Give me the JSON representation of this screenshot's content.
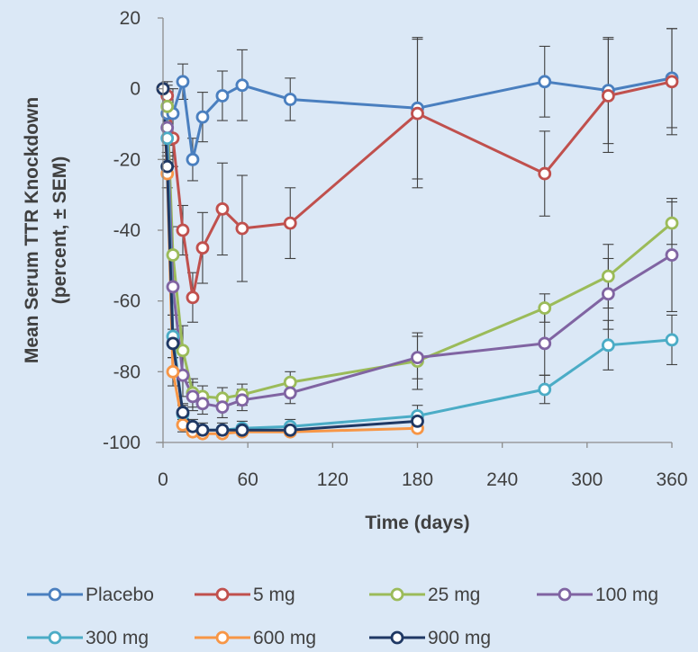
{
  "chart_data": {
    "type": "line",
    "xlabel": "Time (days)",
    "ylabel_lines": [
      "Mean Serum TTR Knockdown",
      "(percent, ± SEM)"
    ],
    "xlim": [
      0,
      360
    ],
    "ylim": [
      -100,
      20
    ],
    "xticks": [
      0,
      60,
      120,
      180,
      240,
      300,
      360
    ],
    "yticks": [
      20,
      0,
      -20,
      -40,
      -60,
      -80,
      -100
    ],
    "grid": false,
    "legend_position": "bottom",
    "series": [
      {
        "name": "Placebo",
        "color": "#4a7fbf",
        "x": [
          0,
          3,
          7,
          14,
          21,
          28,
          42,
          56,
          90,
          180,
          270,
          315,
          360
        ],
        "y": [
          0,
          -7,
          -7,
          2,
          -20,
          -8,
          -2,
          1,
          -3,
          -5.5,
          2,
          -0.5,
          3
        ],
        "err": [
          0,
          8,
          7,
          5,
          6,
          7,
          7,
          10,
          6,
          20,
          10,
          15,
          14
        ]
      },
      {
        "name": "5 mg",
        "color": "#c0504d",
        "x": [
          0,
          3,
          7,
          14,
          21,
          28,
          42,
          56,
          90,
          180,
          270,
          315,
          360
        ],
        "y": [
          0,
          -2,
          -14,
          -40,
          -59,
          -45,
          -34,
          -39.5,
          -38,
          -7,
          -24,
          -2,
          2
        ],
        "err": [
          0,
          4,
          8,
          7,
          7,
          10,
          13,
          15,
          10,
          21,
          12,
          16,
          15
        ]
      },
      {
        "name": "25 mg",
        "color": "#9bbb59",
        "x": [
          0,
          3,
          7,
          14,
          21,
          28,
          42,
          56,
          90,
          180,
          270,
          315,
          360
        ],
        "y": [
          0,
          -5,
          -47,
          -74,
          -86,
          -87,
          -87.5,
          -86.5,
          -83,
          -77,
          -62,
          -53,
          -38
        ],
        "err": [
          0,
          5,
          8,
          7,
          4,
          3,
          3,
          3,
          3,
          8,
          4,
          9,
          6
        ]
      },
      {
        "name": "100 mg",
        "color": "#8064a2",
        "x": [
          0,
          3,
          7,
          14,
          21,
          28,
          42,
          56,
          90,
          180,
          270,
          315,
          360
        ],
        "y": [
          0,
          -11,
          -56,
          -81,
          -87,
          -89,
          -90,
          -88,
          -86,
          -76,
          -72,
          -58,
          -47
        ],
        "err": [
          0,
          5,
          8,
          6,
          4,
          3,
          3,
          3,
          3,
          6,
          9,
          10,
          16
        ]
      },
      {
        "name": "300 mg",
        "color": "#4bacc6",
        "x": [
          0,
          3,
          7,
          14,
          21,
          28,
          42,
          56,
          90,
          180,
          270,
          315,
          360
        ],
        "y": [
          0,
          -14,
          -70,
          -92,
          -95.5,
          -96.5,
          -96.5,
          -96,
          -95.5,
          -92.5,
          -85,
          -72.5,
          -71
        ],
        "err": [
          0,
          4,
          6,
          3,
          2,
          2,
          2,
          2,
          2,
          3,
          4,
          7,
          7
        ]
      },
      {
        "name": "600 mg",
        "color": "#f79646",
        "x": [
          0,
          3,
          7,
          14,
          21,
          28,
          42,
          56,
          90,
          180
        ],
        "y": [
          0,
          -24,
          -80,
          -95,
          -97,
          -97.5,
          -97.5,
          -97,
          -97,
          -96
        ],
        "err": [
          0,
          4,
          4,
          2,
          1,
          1,
          1,
          1,
          1,
          1
        ]
      },
      {
        "name": "900 mg",
        "color": "#1f3864",
        "x": [
          0,
          3,
          7,
          14,
          21,
          28,
          42,
          56,
          90,
          180
        ],
        "y": [
          0,
          -22,
          -72,
          -91.5,
          -95.5,
          -96.5,
          -96.5,
          -96.5,
          -96.5,
          -94
        ],
        "err": [
          0,
          3,
          4,
          2,
          1,
          1,
          1,
          1,
          1,
          1
        ]
      }
    ]
  }
}
